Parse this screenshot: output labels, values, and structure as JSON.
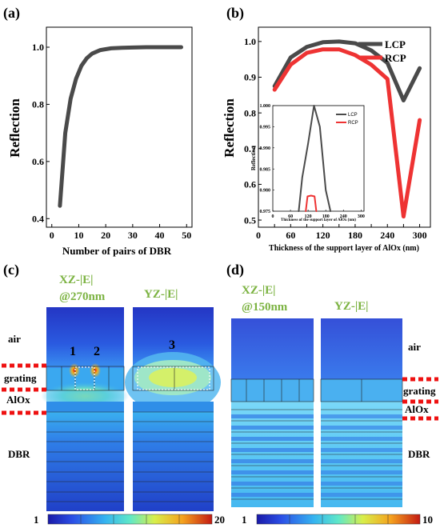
{
  "panels": {
    "a": "(a)",
    "b": "(b)",
    "c": "(c)",
    "d": "(d)"
  },
  "chart_data": [
    {
      "type": "line",
      "panel": "a",
      "xlabel": "Number of pairs of DBR",
      "ylabel": "Reflection",
      "xlim": [
        -2,
        52
      ],
      "ylim": [
        0.37,
        1.07
      ],
      "xticks": [
        0,
        10,
        20,
        30,
        40,
        50
      ],
      "yticks": [
        0.4,
        0.6,
        0.8,
        1.0
      ],
      "ytick_labels": [
        "0.4",
        "0.6",
        "0.8",
        "1.0"
      ],
      "series": [
        {
          "color": "#4a4a4a",
          "x": [
            3,
            5,
            7,
            9,
            11,
            13,
            15,
            18,
            22,
            26,
            30,
            35,
            40,
            48
          ],
          "y": [
            0.445,
            0.7,
            0.82,
            0.89,
            0.935,
            0.962,
            0.978,
            0.99,
            0.996,
            0.998,
            0.999,
            1.0,
            1.0,
            1.0
          ]
        }
      ]
    },
    {
      "type": "line",
      "panel": "b",
      "xlabel": "Thickness of the support layer of AlOx (nm)",
      "ylabel": "Reflection",
      "xlim": [
        0,
        320
      ],
      "ylim": [
        0.48,
        1.04
      ],
      "xticks": [
        0,
        30,
        60,
        90,
        120,
        150,
        180,
        210,
        240,
        270,
        300
      ],
      "xtick_labels": [
        "0",
        "",
        "60",
        "",
        "120",
        "",
        "180",
        "",
        "240",
        "",
        "300"
      ],
      "yticks": [
        0.5,
        0.6,
        0.7,
        0.8,
        0.9,
        1.0
      ],
      "ytick_labels": [
        "0.5",
        "0.6",
        "0.7",
        "0.8",
        "0.9",
        "1.0"
      ],
      "legend": "top-right",
      "series": [
        {
          "name": "LCP",
          "color": "#4a4a4a",
          "x": [
            30,
            60,
            90,
            120,
            150,
            180,
            210,
            240,
            270,
            300
          ],
          "y": [
            0.875,
            0.955,
            0.985,
            0.998,
            1.0,
            0.995,
            0.975,
            0.94,
            0.835,
            0.925
          ]
        },
        {
          "name": "RCP",
          "color": "#ee3333",
          "x": [
            30,
            60,
            90,
            120,
            150,
            180,
            210,
            240,
            270,
            300
          ],
          "y": [
            0.865,
            0.935,
            0.968,
            0.978,
            0.978,
            0.962,
            0.935,
            0.895,
            0.51,
            0.78
          ]
        }
      ]
    },
    {
      "type": "line",
      "panel": "b-inset",
      "xlabel": "Thickness of the support layer of AlOx (nm)",
      "ylabel": "Reflection",
      "xlim": [
        0,
        310
      ],
      "ylim": [
        0.975,
        1.0
      ],
      "xticks": [
        0,
        60,
        120,
        180,
        240,
        300
      ],
      "yticks": [
        0.975,
        0.98,
        0.985,
        0.99,
        0.995,
        1.0
      ],
      "ytick_labels": [
        "0.975",
        "0.980",
        "0.985",
        "0.990",
        "0.995",
        "1.000"
      ],
      "legend": "top-right",
      "series": [
        {
          "name": "LCP",
          "color": "#4a4a4a",
          "x": [
            88,
            100,
            120,
            140,
            160,
            180,
            196
          ],
          "y": [
            0.97,
            0.983,
            0.991,
            1.0,
            0.995,
            0.98,
            0.97
          ]
        },
        {
          "name": "RCP",
          "color": "#ee3333",
          "x": [
            112,
            118,
            130,
            142,
            148
          ],
          "y": [
            0.97,
            0.9785,
            0.9787,
            0.9785,
            0.97
          ]
        }
      ]
    }
  ],
  "field_c": {
    "title_xz_1": "XZ-|E|",
    "title_xz_2": "@270nm",
    "title_yz": "YZ-|E|",
    "mark1": "1",
    "mark2": "2",
    "mark3": "3",
    "label_air": "air",
    "label_grating": "grating",
    "label_alox": "AlOx",
    "label_dbr": "DBR",
    "cbar_min": "1",
    "cbar_max": "20"
  },
  "field_d": {
    "title_xz_1": "XZ-|E|",
    "title_xz_2": "@150nm",
    "title_yz": "YZ-|E|",
    "label_air": "air",
    "label_grating": "grating",
    "label_alox": "AlOx",
    "label_dbr": "DBR",
    "cbar_min": "1",
    "cbar_max": "10"
  },
  "colors": {
    "accent_green": "#7cb342",
    "dash_red": "#ee1111"
  }
}
